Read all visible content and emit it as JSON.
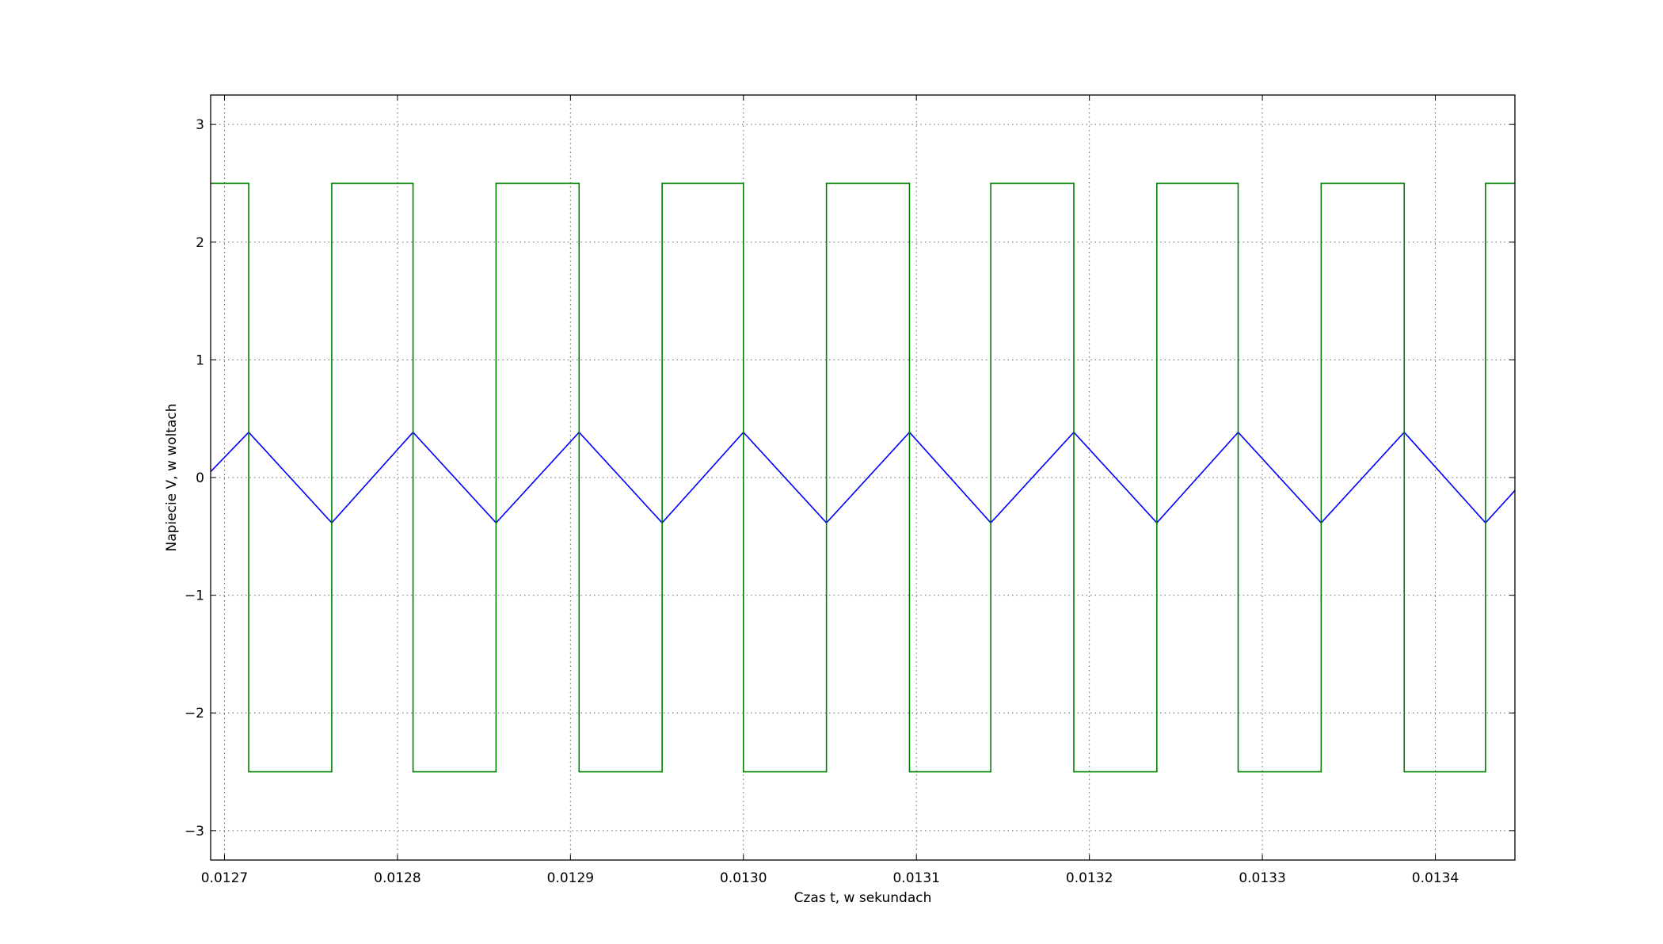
{
  "chart_data": {
    "type": "line",
    "title": "",
    "xlabel": "Czas t, w sekundach",
    "ylabel": "Napiecie V, w woltach",
    "xlim": [
      0.012692,
      0.013446
    ],
    "ylim": [
      -3.25,
      3.25
    ],
    "grid": true,
    "legend": "none",
    "xticks": [
      0.0127,
      0.0128,
      0.0129,
      0.013,
      0.0131,
      0.0132,
      0.0133,
      0.0134
    ],
    "xtick_labels": [
      "0.0127",
      "0.0128",
      "0.0129",
      "0.0130",
      "0.0131",
      "0.0132",
      "0.0133",
      "0.0134"
    ],
    "yticks": [
      3,
      2,
      1,
      0,
      -1,
      -2,
      -3
    ],
    "ytick_labels": [
      "3",
      "2",
      "1",
      "0",
      "−1",
      "−2",
      "−3"
    ],
    "series": [
      {
        "color": "#0000ff",
        "x": [
          0.012692,
          0.012714,
          0.012762,
          0.012809,
          0.012857,
          0.012905,
          0.012953,
          0.013,
          0.013048,
          0.013096,
          0.013143,
          0.013191,
          0.013239,
          0.013286,
          0.013334,
          0.013382,
          0.013429,
          0.013446
        ],
        "y": [
          0.05,
          0.385,
          -0.385,
          0.385,
          -0.385,
          0.385,
          -0.385,
          0.385,
          -0.385,
          0.385,
          -0.385,
          0.385,
          -0.385,
          0.385,
          -0.385,
          0.385,
          -0.385,
          -0.11
        ]
      },
      {
        "color": "#008000",
        "x": [
          0.012692,
          0.012714,
          0.012714,
          0.012762,
          0.012762,
          0.012809,
          0.012809,
          0.012857,
          0.012857,
          0.012905,
          0.012905,
          0.012953,
          0.012953,
          0.013,
          0.013,
          0.013048,
          0.013048,
          0.013096,
          0.013096,
          0.013143,
          0.013143,
          0.013191,
          0.013191,
          0.013239,
          0.013239,
          0.013286,
          0.013286,
          0.013334,
          0.013334,
          0.013382,
          0.013382,
          0.013429,
          0.013429,
          0.013446
        ],
        "y": [
          2.5,
          2.5,
          -2.5,
          -2.5,
          2.5,
          2.5,
          -2.5,
          -2.5,
          2.5,
          2.5,
          -2.5,
          -2.5,
          2.5,
          2.5,
          -2.5,
          -2.5,
          2.5,
          2.5,
          -2.5,
          -2.5,
          2.5,
          2.5,
          -2.5,
          -2.5,
          2.5,
          2.5,
          -2.5,
          -2.5,
          2.5,
          2.5,
          -2.5,
          -2.5,
          2.5,
          2.5
        ]
      }
    ]
  }
}
